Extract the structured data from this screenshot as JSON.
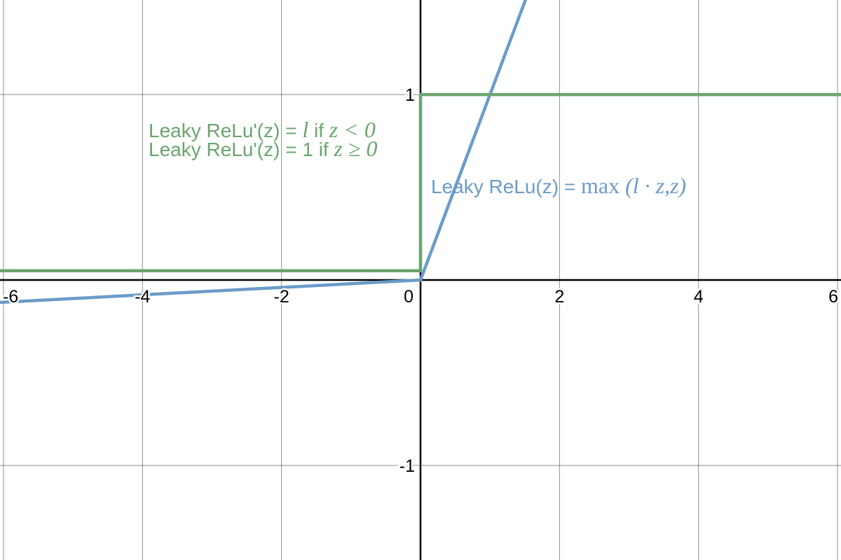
{
  "chart_data": {
    "type": "line",
    "xlim": [
      -6.05,
      6.05
    ],
    "ylim": [
      -1.51,
      1.51
    ],
    "grid": true,
    "x_ticks": [
      {
        "value": -6,
        "label": "-6"
      },
      {
        "value": -4,
        "label": "-4"
      },
      {
        "value": -2,
        "label": "-2"
      },
      {
        "value": 0,
        "label": "0"
      },
      {
        "value": 2,
        "label": "2"
      },
      {
        "value": 4,
        "label": "4"
      },
      {
        "value": 6,
        "label": "6"
      }
    ],
    "y_ticks": [
      {
        "value": 1,
        "label": "1"
      },
      {
        "value": -1,
        "label": "-1"
      }
    ],
    "series": [
      {
        "key": "leaky-relu",
        "color": "#6b9bc9",
        "points": [
          [
            -6.05,
            -0.121
          ],
          [
            0,
            0
          ],
          [
            1.6,
            1.6
          ]
        ]
      },
      {
        "key": "leaky-relu-derivative",
        "color": "#6aa56f",
        "points": [
          [
            -6.05,
            0.05
          ],
          [
            0,
            0.05
          ],
          [
            0,
            1
          ],
          [
            6.05,
            1
          ]
        ]
      }
    ],
    "annotations": {
      "derivative_line1": {
        "prefix": "Leaky ReLu'(z) = ",
        "var_l": "l",
        "if_text": " if ",
        "condition": "z < 0",
        "color": "#6aa56f"
      },
      "derivative_line2": {
        "prefix": "Leaky ReLu'(z) = 1",
        "if_text": " if ",
        "condition": "z ≥ 0",
        "color": "#6aa56f"
      },
      "function": {
        "prefix": "Leaky ReLu(z) = ",
        "func_name": "max",
        "args": "(l · z,z)",
        "color": "#6b9bc9"
      }
    }
  }
}
